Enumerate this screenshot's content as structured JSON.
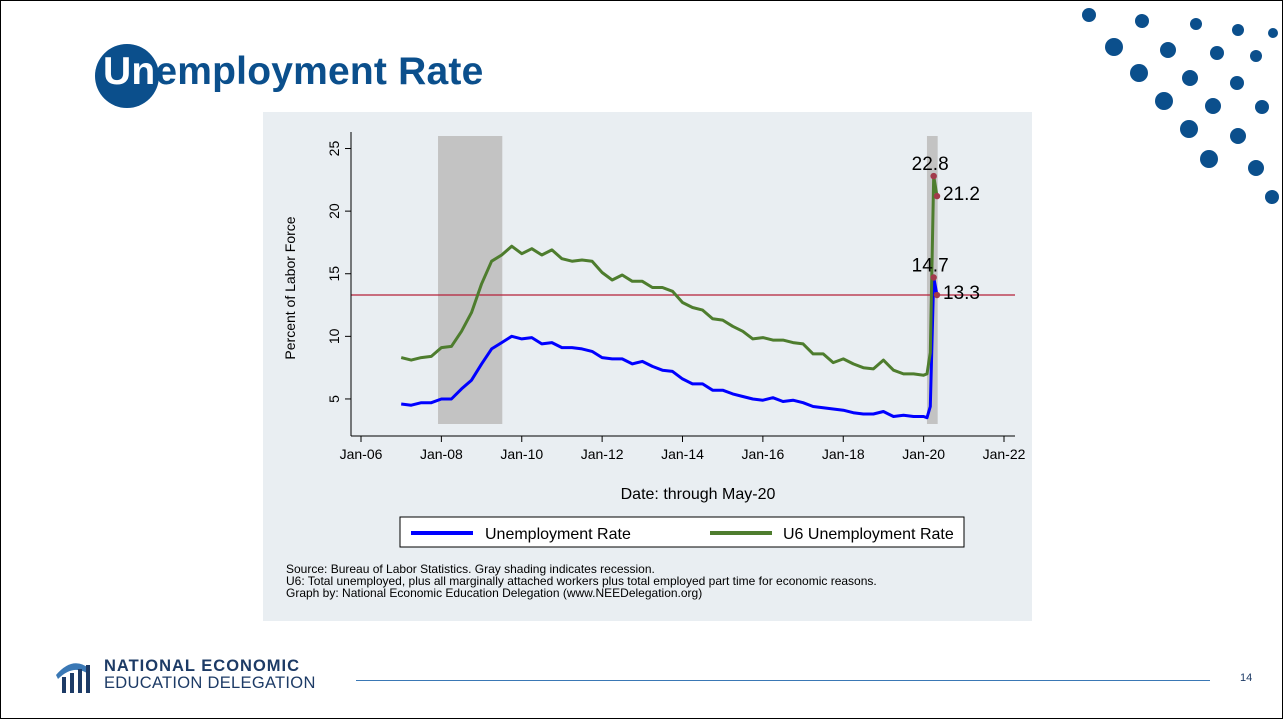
{
  "slide": {
    "title_highlight": "Un",
    "title_rest": "employment Rate",
    "page_number": "14",
    "org_name_line1": "NATIONAL ECONOMIC",
    "org_name_line2": "EDUCATION DELEGATION",
    "accent_color": "#0b4f8c"
  },
  "chart_data": {
    "type": "line",
    "xlabel": "Date: through May-20",
    "ylabel": "Percent of Labor Force",
    "x_ticks": [
      "Jan-06",
      "Jan-08",
      "Jan-10",
      "Jan-12",
      "Jan-14",
      "Jan-16",
      "Jan-18",
      "Jan-20",
      "Jan-22"
    ],
    "y_ticks": [
      "5",
      "10",
      "15",
      "20",
      "25"
    ],
    "xlim": [
      "2006-01",
      "2022-01"
    ],
    "ylim": [
      3,
      26
    ],
    "grid": false,
    "legend_position": "bottom",
    "reference_line": {
      "value": 13.3,
      "color": "#b5203a"
    },
    "recessions": [
      {
        "start": "2007-12",
        "end": "2009-06"
      },
      {
        "start": "2020-02",
        "end": "2020-04"
      }
    ],
    "series": [
      {
        "name": "Unemployment Rate",
        "color": "#0000ff",
        "points": [
          [
            "2007-01",
            4.6
          ],
          [
            "2007-04",
            4.5
          ],
          [
            "2007-07",
            4.7
          ],
          [
            "2007-10",
            4.7
          ],
          [
            "2008-01",
            5.0
          ],
          [
            "2008-04",
            5.0
          ],
          [
            "2008-07",
            5.8
          ],
          [
            "2008-10",
            6.5
          ],
          [
            "2009-01",
            7.8
          ],
          [
            "2009-04",
            9.0
          ],
          [
            "2009-07",
            9.5
          ],
          [
            "2009-10",
            10.0
          ],
          [
            "2010-01",
            9.8
          ],
          [
            "2010-04",
            9.9
          ],
          [
            "2010-07",
            9.4
          ],
          [
            "2010-10",
            9.5
          ],
          [
            "2011-01",
            9.1
          ],
          [
            "2011-04",
            9.1
          ],
          [
            "2011-07",
            9.0
          ],
          [
            "2011-10",
            8.8
          ],
          [
            "2012-01",
            8.3
          ],
          [
            "2012-04",
            8.2
          ],
          [
            "2012-07",
            8.2
          ],
          [
            "2012-10",
            7.8
          ],
          [
            "2013-01",
            8.0
          ],
          [
            "2013-04",
            7.6
          ],
          [
            "2013-07",
            7.3
          ],
          [
            "2013-10",
            7.2
          ],
          [
            "2014-01",
            6.6
          ],
          [
            "2014-04",
            6.2
          ],
          [
            "2014-07",
            6.2
          ],
          [
            "2014-10",
            5.7
          ],
          [
            "2015-01",
            5.7
          ],
          [
            "2015-04",
            5.4
          ],
          [
            "2015-07",
            5.2
          ],
          [
            "2015-10",
            5.0
          ],
          [
            "2016-01",
            4.9
          ],
          [
            "2016-04",
            5.1
          ],
          [
            "2016-07",
            4.8
          ],
          [
            "2016-10",
            4.9
          ],
          [
            "2017-01",
            4.7
          ],
          [
            "2017-04",
            4.4
          ],
          [
            "2017-07",
            4.3
          ],
          [
            "2017-10",
            4.2
          ],
          [
            "2018-01",
            4.1
          ],
          [
            "2018-04",
            3.9
          ],
          [
            "2018-07",
            3.8
          ],
          [
            "2018-10",
            3.8
          ],
          [
            "2019-01",
            4.0
          ],
          [
            "2019-04",
            3.6
          ],
          [
            "2019-07",
            3.7
          ],
          [
            "2019-10",
            3.6
          ],
          [
            "2020-01",
            3.6
          ],
          [
            "2020-02",
            3.5
          ],
          [
            "2020-03",
            4.4
          ],
          [
            "2020-04",
            14.7
          ],
          [
            "2020-05",
            13.3
          ]
        ]
      },
      {
        "name": "U6 Unemployment Rate",
        "color": "#4e7d2e",
        "points": [
          [
            "2007-01",
            8.3
          ],
          [
            "2007-04",
            8.1
          ],
          [
            "2007-07",
            8.3
          ],
          [
            "2007-10",
            8.4
          ],
          [
            "2008-01",
            9.1
          ],
          [
            "2008-04",
            9.2
          ],
          [
            "2008-07",
            10.4
          ],
          [
            "2008-10",
            11.9
          ],
          [
            "2009-01",
            14.2
          ],
          [
            "2009-04",
            16.0
          ],
          [
            "2009-07",
            16.5
          ],
          [
            "2009-10",
            17.2
          ],
          [
            "2010-01",
            16.6
          ],
          [
            "2010-04",
            17.0
          ],
          [
            "2010-07",
            16.5
          ],
          [
            "2010-10",
            16.9
          ],
          [
            "2011-01",
            16.2
          ],
          [
            "2011-04",
            16.0
          ],
          [
            "2011-07",
            16.1
          ],
          [
            "2011-10",
            16.0
          ],
          [
            "2012-01",
            15.1
          ],
          [
            "2012-04",
            14.5
          ],
          [
            "2012-07",
            14.9
          ],
          [
            "2012-10",
            14.4
          ],
          [
            "2013-01",
            14.4
          ],
          [
            "2013-04",
            13.9
          ],
          [
            "2013-07",
            13.9
          ],
          [
            "2013-10",
            13.6
          ],
          [
            "2014-01",
            12.7
          ],
          [
            "2014-04",
            12.3
          ],
          [
            "2014-07",
            12.1
          ],
          [
            "2014-10",
            11.4
          ],
          [
            "2015-01",
            11.3
          ],
          [
            "2015-04",
            10.8
          ],
          [
            "2015-07",
            10.4
          ],
          [
            "2015-10",
            9.8
          ],
          [
            "2016-01",
            9.9
          ],
          [
            "2016-04",
            9.7
          ],
          [
            "2016-07",
            9.7
          ],
          [
            "2016-10",
            9.5
          ],
          [
            "2017-01",
            9.4
          ],
          [
            "2017-04",
            8.6
          ],
          [
            "2017-07",
            8.6
          ],
          [
            "2017-10",
            7.9
          ],
          [
            "2018-01",
            8.2
          ],
          [
            "2018-04",
            7.8
          ],
          [
            "2018-07",
            7.5
          ],
          [
            "2018-10",
            7.4
          ],
          [
            "2019-01",
            8.1
          ],
          [
            "2019-04",
            7.3
          ],
          [
            "2019-07",
            7.0
          ],
          [
            "2019-10",
            7.0
          ],
          [
            "2020-01",
            6.9
          ],
          [
            "2020-02",
            7.0
          ],
          [
            "2020-03",
            8.7
          ],
          [
            "2020-04",
            22.8
          ],
          [
            "2020-05",
            21.2
          ]
        ]
      }
    ],
    "annotations": [
      {
        "text": "22.8",
        "x": "2020-04",
        "y": 22.8
      },
      {
        "text": "21.2",
        "x": "2020-05",
        "y": 21.2
      },
      {
        "text": "14.7",
        "x": "2020-04",
        "y": 14.7
      },
      {
        "text": "13.3",
        "x": "2020-05",
        "y": 13.3
      }
    ],
    "notes": [
      "Source: Bureau of Labor Statistics. Gray shading indicates recession.",
      "U6: Total unemployed, plus all marginally attached workers plus total employed part time for economic reasons.",
      "Graph by: National Economic Education Delegation (www.NEEDelegation.org)"
    ]
  }
}
